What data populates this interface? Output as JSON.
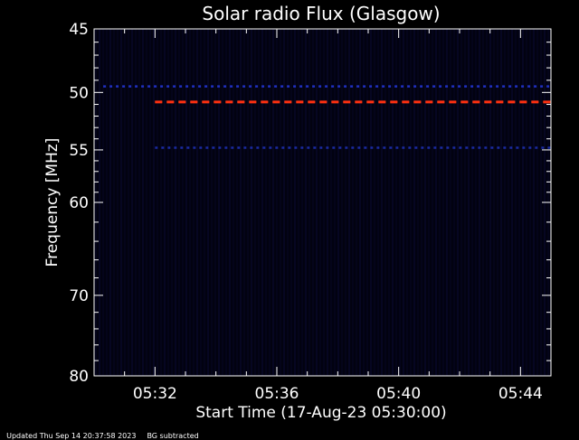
{
  "chart_data": {
    "type": "heatmap",
    "title": "Solar radio Flux (Glasgow)",
    "xlabel": "Start Time (17-Aug-23 05:30:00)",
    "ylabel": "Frequency [MHz]",
    "x_unit": "minutes",
    "xlim": [
      0,
      15
    ],
    "ylim": [
      45,
      80
    ],
    "y_scale": "log",
    "x_ticks": [
      {
        "value": 2,
        "label": "05:32"
      },
      {
        "value": 6,
        "label": "05:36"
      },
      {
        "value": 10,
        "label": "05:40"
      },
      {
        "value": 14,
        "label": "05:44"
      }
    ],
    "y_ticks": [
      45,
      50,
      55,
      60,
      70,
      80
    ],
    "bands": [
      {
        "freq": 49.5,
        "x_start": 0.3,
        "x_end": 15,
        "color": "#2030c0",
        "style": "dotted"
      },
      {
        "freq": 50.8,
        "x_start": 2,
        "x_end": 15,
        "color": "#ff3010",
        "style": "dashed"
      },
      {
        "freq": 54.8,
        "x_start": 2,
        "x_end": 15,
        "color": "#1a2aa0",
        "style": "dotted"
      }
    ],
    "background_color": "#000000",
    "axis_color": "#ffffff"
  },
  "footer": {
    "updated": "Updated Thu Sep 14 20:37:58 2023",
    "note": "BG subtracted"
  }
}
